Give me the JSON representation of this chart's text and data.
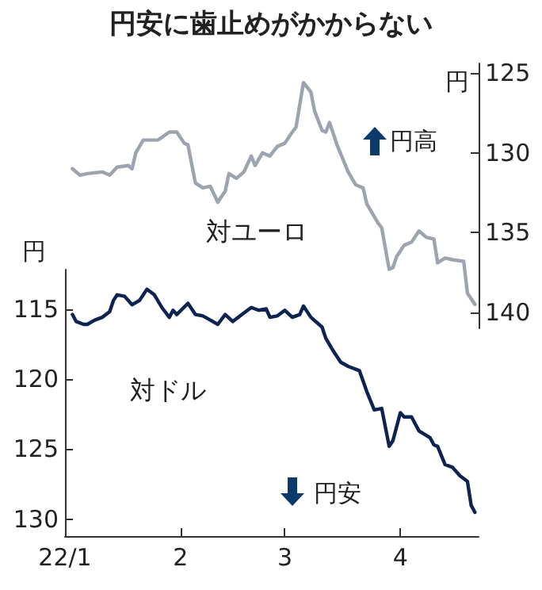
{
  "chart_data": [
    {
      "type": "line",
      "title": "円安に歯止めがかからない",
      "ylabel": "円",
      "annotations": [
        "円高"
      ],
      "tick_labels": "y",
      "xlim": [
        "--01-01",
        "--04-22"
      ],
      "ylim": [
        141,
        124.4
      ],
      "yticks": [
        125,
        130,
        135,
        140
      ],
      "x": [
        "--01-03",
        "--01-05",
        "--01-07",
        "--01-11",
        "--01-13",
        "--01-15",
        "--01-18",
        "--01-19",
        "--01-20",
        "--01-22",
        "--01-26",
        "--01-29",
        "--01-31",
        "--02-02",
        "--02-03",
        "--02-05",
        "--02-07",
        "--02-09",
        "--02-11",
        "--02-13",
        "--02-14",
        "--02-16",
        "--02-18",
        "--02-20",
        "--02-21",
        "--02-23",
        "--02-25",
        "--02-27",
        "--03-01",
        "--03-03",
        "--03-04",
        "--03-06",
        "--03-08",
        "--03-09",
        "--03-11",
        "--03-12",
        "--03-13",
        "--03-15",
        "--03-18",
        "--03-20",
        "--03-22",
        "--03-23",
        "--03-26",
        "--03-27",
        "--03-29",
        "--03-30",
        "--03-31",
        "--04-02",
        "--04-04",
        "--04-06",
        "--04-08",
        "--04-10",
        "--04-11",
        "--04-13",
        "--04-15",
        "--04-18",
        "--04-19",
        "--04-21"
      ],
      "series": [
        {
          "name": "対ユーロ",
          "color": "#9ea3b0",
          "values": [
            131.0,
            131.4,
            131.3,
            131.2,
            131.4,
            130.9,
            130.8,
            131.0,
            130.0,
            129.2,
            129.2,
            128.7,
            128.7,
            129.4,
            129.5,
            131.9,
            132.2,
            132.1,
            133.1,
            132.4,
            131.3,
            131.6,
            131.2,
            130.2,
            130.8,
            130.0,
            130.2,
            129.6,
            129.4,
            128.7,
            128.4,
            125.6,
            126.2,
            127.4,
            128.6,
            128.7,
            128.1,
            129.5,
            131.2,
            132.0,
            132.2,
            133.2,
            134.4,
            134.7,
            137.3,
            137.2,
            136.5,
            135.8,
            135.6,
            134.9,
            135.3,
            135.4,
            136.9,
            136.6,
            136.7,
            136.8,
            138.8,
            139.5
          ]
        }
      ]
    },
    {
      "type": "line",
      "ylabel": "円",
      "annotations": [
        "円安"
      ],
      "xlim": [
        "--01-01",
        "--04-22"
      ],
      "xticks": [
        {
          "value": "--01-01",
          "label": "22/1"
        },
        {
          "value": "--02-01",
          "label": "2"
        },
        {
          "value": "--03-01",
          "label": "3"
        },
        {
          "value": "--04-01",
          "label": "4"
        }
      ],
      "ylim": [
        131.2,
        112.2
      ],
      "yticks": [
        115,
        120,
        125,
        130
      ],
      "x": [
        "--01-03",
        "--01-04",
        "--01-06",
        "--01-07",
        "--01-09",
        "--01-11",
        "--01-13",
        "--01-14",
        "--01-15",
        "--01-17",
        "--01-19",
        "--01-21",
        "--01-23",
        "--01-25",
        "--01-27",
        "--01-29",
        "--01-30",
        "--01-31",
        "--02-03",
        "--02-05",
        "--02-07",
        "--02-09",
        "--02-11",
        "--02-13",
        "--02-15",
        "--02-17",
        "--02-20",
        "--02-22",
        "--02-24",
        "--02-25",
        "--02-27",
        "--03-01",
        "--03-03",
        "--03-05",
        "--03-06",
        "--03-08",
        "--03-11",
        "--03-12",
        "--03-14",
        "--03-16",
        "--03-18",
        "--03-21",
        "--03-23",
        "--03-25",
        "--03-27",
        "--03-29",
        "--03-30",
        "--04-01",
        "--04-02",
        "--04-04",
        "--04-06",
        "--04-09",
        "--04-10",
        "--04-11",
        "--04-13",
        "--04-15",
        "--04-17",
        "--04-19",
        "--04-20",
        "--04-21"
      ],
      "series": [
        {
          "name": "対ドル",
          "color": "#0d2350",
          "values": [
            115.4,
            115.9,
            116.1,
            116.1,
            115.8,
            115.6,
            115.2,
            114.4,
            114.0,
            114.1,
            114.7,
            114.4,
            113.6,
            114.0,
            114.9,
            115.6,
            115.1,
            115.4,
            114.6,
            115.4,
            115.5,
            115.8,
            116.1,
            115.4,
            115.9,
            115.5,
            114.9,
            115.1,
            115.0,
            115.6,
            115.5,
            115.1,
            115.6,
            115.4,
            114.8,
            115.6,
            116.3,
            117.1,
            118.0,
            118.8,
            119.1,
            119.4,
            120.9,
            122.2,
            122.1,
            124.8,
            124.4,
            122.4,
            122.7,
            122.7,
            123.7,
            124.2,
            124.7,
            124.8,
            126.1,
            126.3,
            126.9,
            127.3,
            129.0,
            129.5
          ]
        }
      ]
    }
  ]
}
